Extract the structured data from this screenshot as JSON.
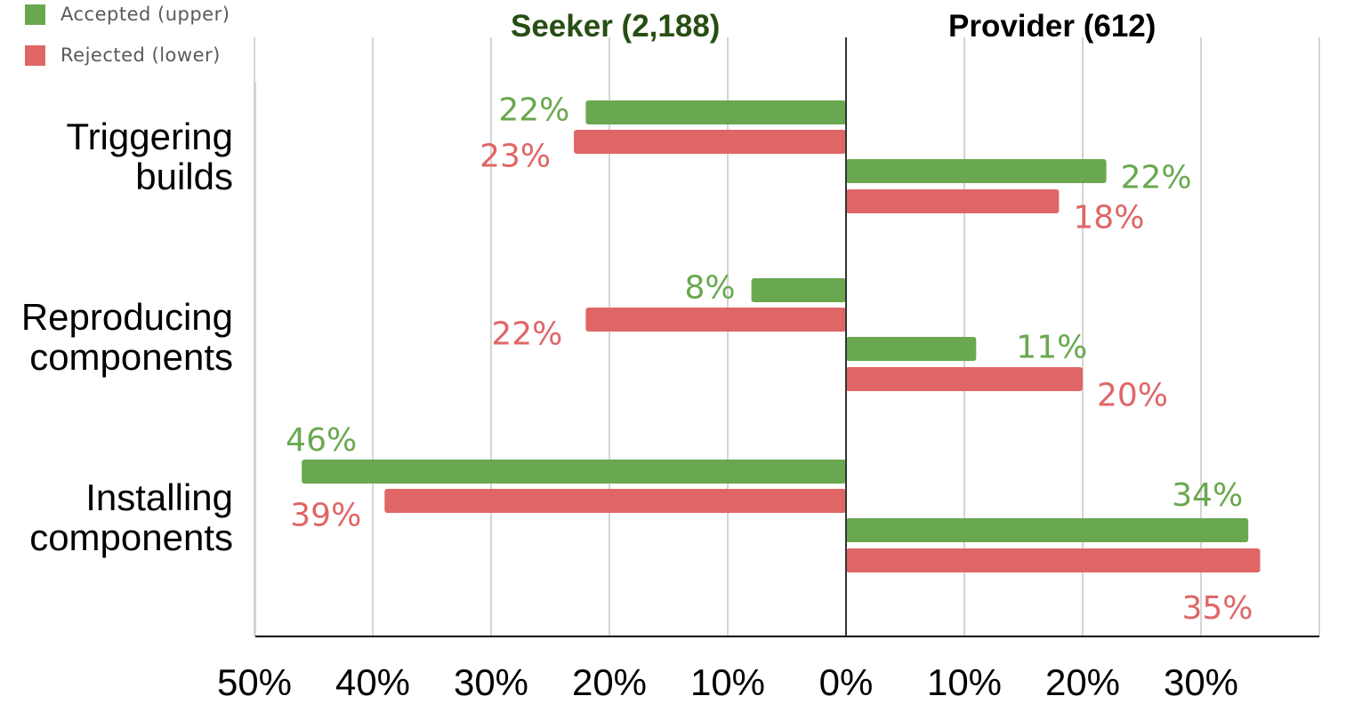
{
  "colors": {
    "accepted": "#6aa84f",
    "rejected": "#e06666",
    "seeker_title": "#274e13",
    "provider_title": "#000000",
    "gridline": "#d4d4d4",
    "axis": "#000000",
    "center_line": "#333333"
  },
  "legend": [
    {
      "label": "Accepted (upper)",
      "color": "#6aa84f"
    },
    {
      "label": "Rejected (lower)",
      "color": "#e06666"
    }
  ],
  "panels": {
    "seeker_title": "Seeker (2,188)",
    "provider_title": "Provider (612)"
  },
  "categories": [
    {
      "line1": "Triggering",
      "line2": "builds"
    },
    {
      "line1": "Reproducing",
      "line2": "components"
    },
    {
      "line1": "Installing",
      "line2": "components"
    }
  ],
  "chart_data": {
    "type": "bar",
    "orientation": "horizontal-diverging",
    "categories": [
      "Triggering builds",
      "Reproducing components",
      "Installing components"
    ],
    "series": [
      {
        "name": "Accepted (upper)",
        "panel": "Seeker (2,188)",
        "values": [
          22,
          8,
          46
        ]
      },
      {
        "name": "Rejected (lower)",
        "panel": "Seeker (2,188)",
        "values": [
          23,
          22,
          39
        ]
      },
      {
        "name": "Accepted (upper)",
        "panel": "Provider (612)",
        "values": [
          22,
          11,
          34
        ]
      },
      {
        "name": "Rejected (lower)",
        "panel": "Provider (612)",
        "values": [
          18,
          20,
          35
        ]
      }
    ],
    "value_labels": {
      "seeker_accepted": [
        "22%",
        "8%",
        "46%"
      ],
      "seeker_rejected": [
        "23%",
        "22%",
        "39%"
      ],
      "provider_accepted": [
        "22%",
        "11%",
        "34%"
      ],
      "provider_rejected": [
        "18%",
        "20%",
        "35%"
      ]
    },
    "x_ticks": [
      "50%",
      "40%",
      "30%",
      "20%",
      "10%",
      "0%",
      "10%",
      "20%",
      "30%"
    ],
    "xlim": [
      -50,
      40
    ],
    "grid": true,
    "legend_position": "top-left"
  }
}
